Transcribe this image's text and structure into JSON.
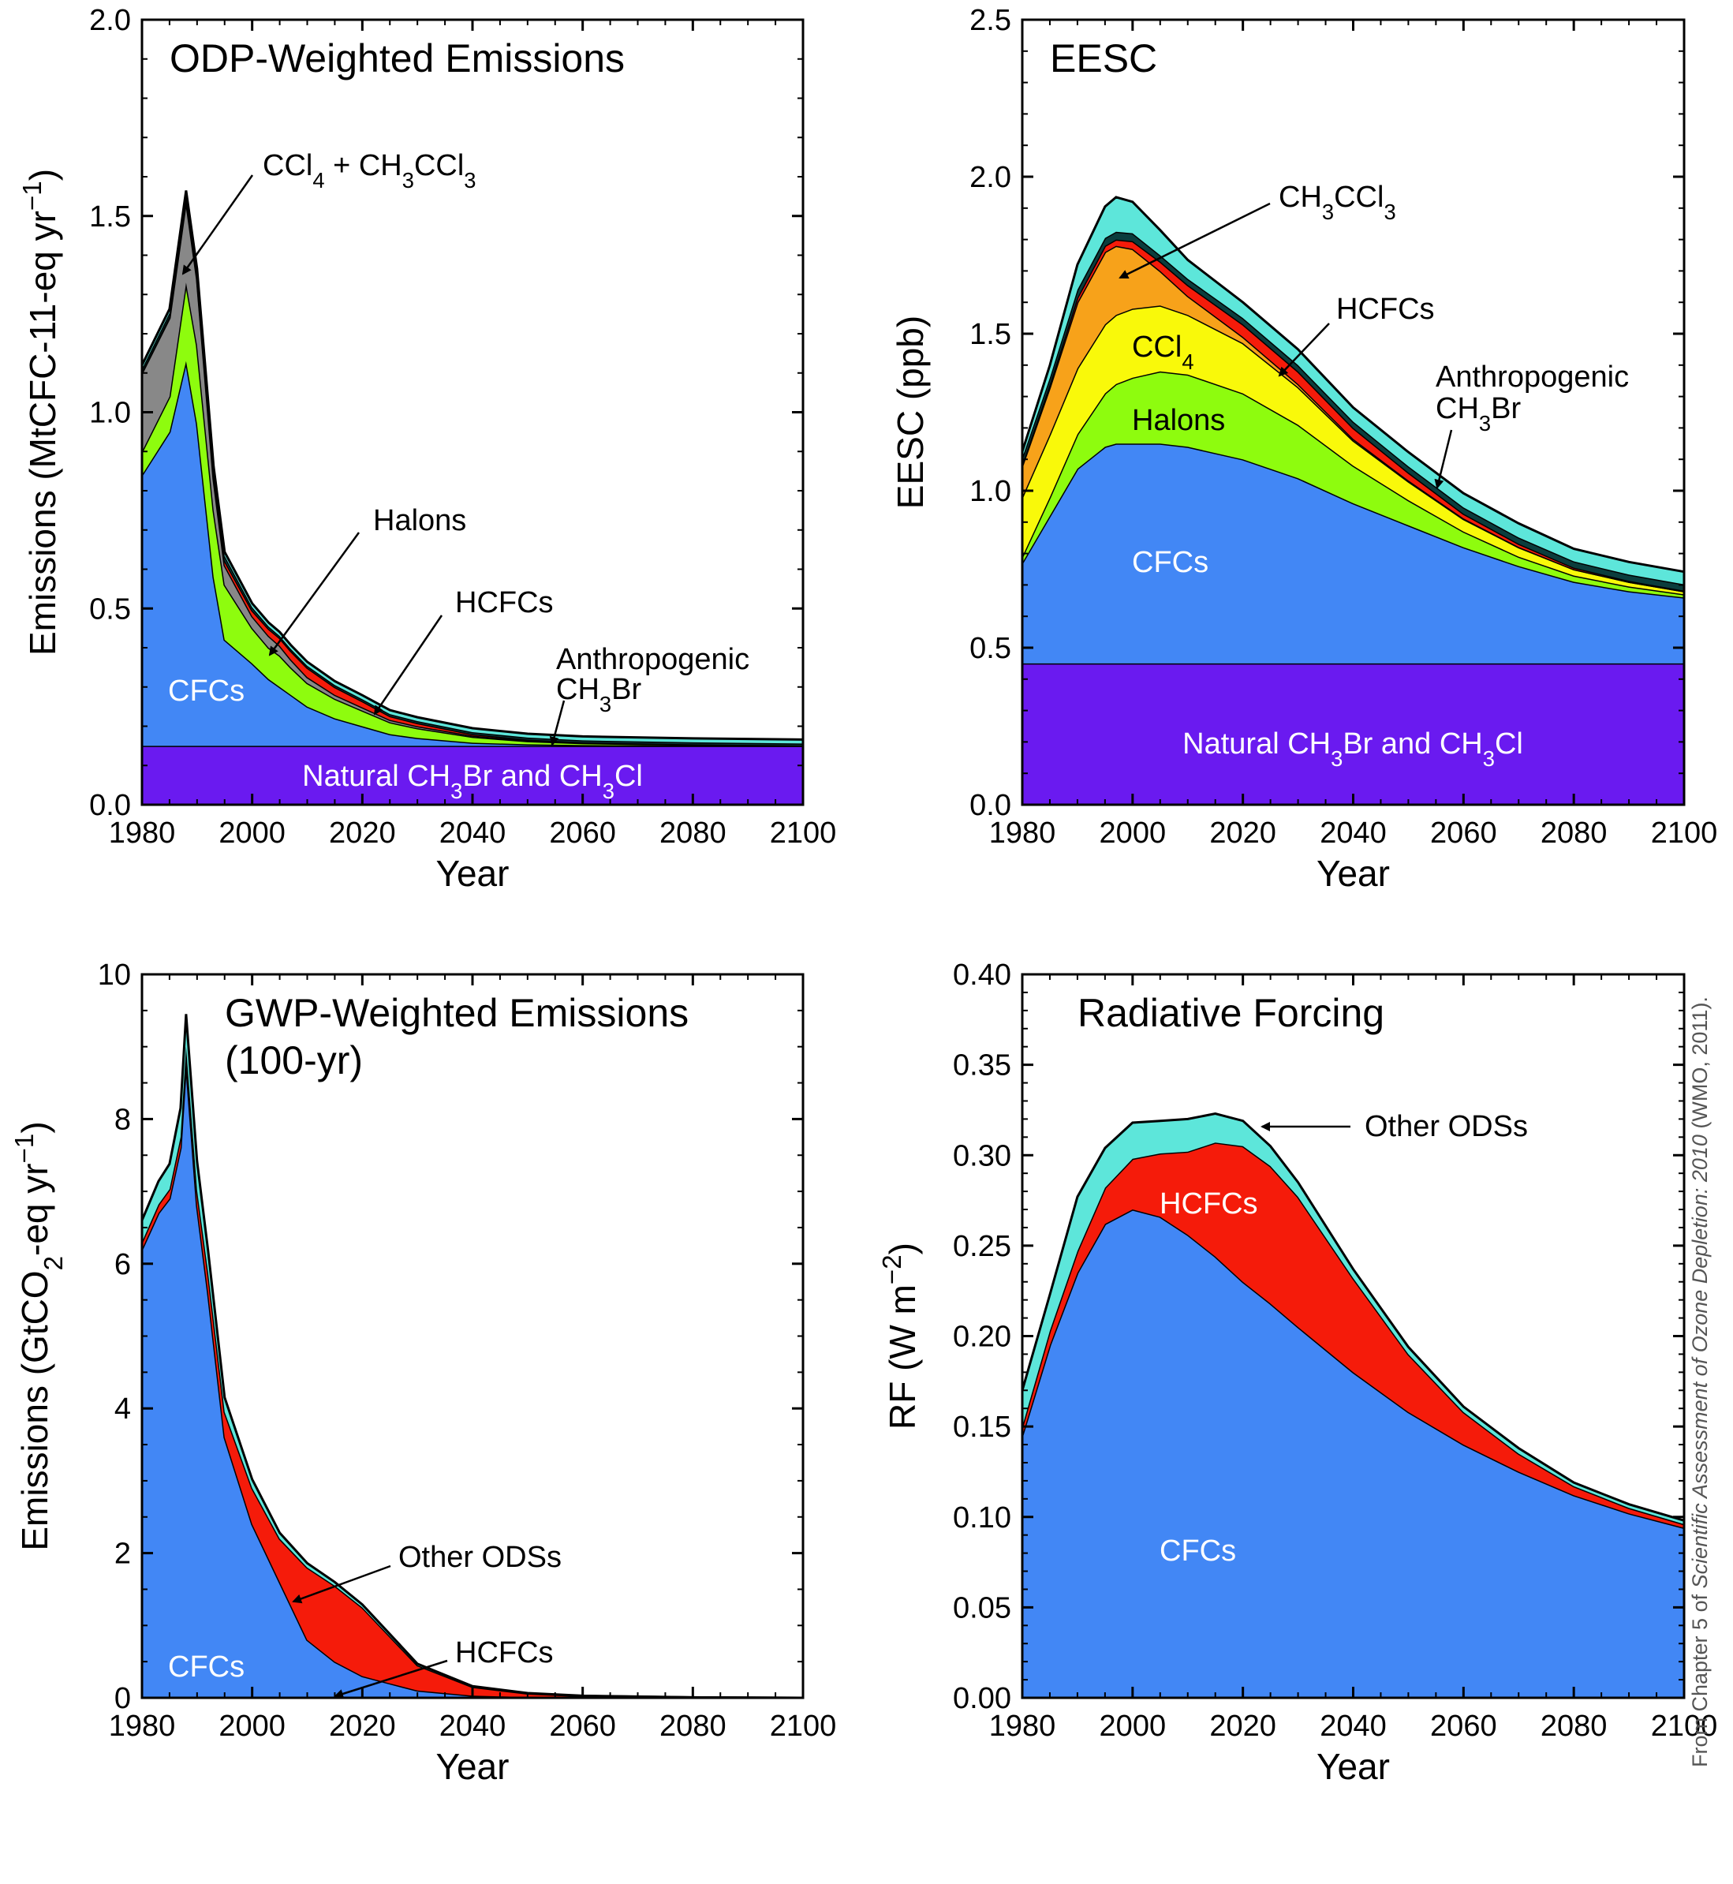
{
  "colors": {
    "CFCs": "#4287f5",
    "Halons": "#8efc0e",
    "CCl4": "#f9f90a",
    "CH3CCl3": "#f7a21a",
    "HCFCs": "#f51b0a",
    "Anthropogenic CH3Br": "#0b3d3d",
    "Other ODSs": "#5de6da",
    "Natural CH3Br and CH3Cl": "#6a1af0",
    "outline": "#000000",
    "label_on_dark": "#ffffff"
  },
  "credit": {
    "prefix": "From Chapter 5 of ",
    "title": "Scientific Assessment of Ozone Depletion: 2010",
    "suffix": " (WMO, 2011)."
  },
  "chart_data": [
    {
      "type": "area",
      "stacked": true,
      "title": "ODP-Weighted Emissions",
      "xlabel": "Year",
      "ylabel": "Emissions (MtCFC-11-eq yr⁻¹)",
      "xlim": [
        1980,
        2100
      ],
      "ylim": [
        0,
        2.0
      ],
      "xticks": [
        "1980",
        "2000",
        "2020",
        "2040",
        "2060",
        "2080",
        "2100"
      ],
      "yticks": [
        "0.0",
        "0.5",
        "1.0",
        "1.5",
        "2.0"
      ],
      "x": [
        1980,
        1985,
        1988,
        1990,
        1993,
        1995,
        2000,
        2003,
        2005,
        2007,
        2010,
        2015,
        2020,
        2025,
        2030,
        2040,
        2050,
        2060,
        2080,
        2100
      ],
      "series": [
        {
          "name": "Natural CH3Br and CH3Cl",
          "values": [
            0.15,
            0.15,
            0.15,
            0.15,
            0.15,
            0.15,
            0.15,
            0.15,
            0.15,
            0.15,
            0.15,
            0.15,
            0.15,
            0.15,
            0.15,
            0.15,
            0.15,
            0.15,
            0.15,
            0.15
          ]
        },
        {
          "name": "CFCs",
          "values": [
            0.69,
            0.8,
            0.98,
            0.82,
            0.43,
            0.27,
            0.21,
            0.17,
            0.15,
            0.13,
            0.1,
            0.07,
            0.05,
            0.03,
            0.02,
            0.008,
            0.004,
            0.002,
            0.001,
            0.0
          ]
        },
        {
          "name": "Halons",
          "values": [
            0.06,
            0.09,
            0.2,
            0.2,
            0.17,
            0.14,
            0.09,
            0.08,
            0.08,
            0.07,
            0.06,
            0.05,
            0.04,
            0.03,
            0.025,
            0.015,
            0.008,
            0.005,
            0.002,
            0.001
          ]
        },
        {
          "name": "CCl4 + CH3CCl3",
          "values": [
            0.2,
            0.2,
            0.21,
            0.17,
            0.08,
            0.05,
            0.03,
            0.03,
            0.025,
            0.02,
            0.015,
            0.01,
            0.008,
            0.006,
            0.005,
            0.003,
            0.002,
            0.001,
            0.001,
            0.0
          ]
        },
        {
          "name": "HCFCs",
          "values": [
            0.002,
            0.004,
            0.005,
            0.006,
            0.01,
            0.012,
            0.015,
            0.018,
            0.02,
            0.022,
            0.024,
            0.02,
            0.016,
            0.01,
            0.008,
            0.004,
            0.002,
            0.001,
            0.0,
            0.0
          ]
        },
        {
          "name": "Anthropogenic CH3Br",
          "values": [
            0.008,
            0.009,
            0.01,
            0.01,
            0.012,
            0.012,
            0.008,
            0.006,
            0.005,
            0.005,
            0.005,
            0.005,
            0.005,
            0.005,
            0.005,
            0.005,
            0.005,
            0.005,
            0.005,
            0.005
          ]
        },
        {
          "name": "Other ODSs",
          "values": [
            0.01,
            0.01,
            0.01,
            0.01,
            0.01,
            0.01,
            0.01,
            0.01,
            0.01,
            0.01,
            0.01,
            0.01,
            0.01,
            0.01,
            0.01,
            0.01,
            0.01,
            0.01,
            0.01,
            0.01
          ]
        }
      ],
      "labels": {
        "inner_natural": "Natural CH₃Br and CH₃Cl",
        "inner_cfcs": "CFCs",
        "ccl4_ch3ccl3": "CCl₄ + CH₃CCl₃",
        "halons": "Halons",
        "hcfcs": "HCFCs",
        "anthro_1": "Anthropogenic",
        "anthro_2": "CH₃Br"
      }
    },
    {
      "type": "area",
      "stacked": true,
      "title": "EESC",
      "xlabel": "Year",
      "ylabel": "EESC (ppb)",
      "xlim": [
        1980,
        2100
      ],
      "ylim": [
        0,
        2.5
      ],
      "xticks": [
        "1980",
        "2000",
        "2020",
        "2040",
        "2060",
        "2080",
        "2100"
      ],
      "yticks": [
        "0.0",
        "0.5",
        "1.0",
        "1.5",
        "2.0",
        "2.5"
      ],
      "x": [
        1980,
        1985,
        1990,
        1995,
        1997,
        2000,
        2005,
        2010,
        2020,
        2030,
        2040,
        2050,
        2060,
        2070,
        2080,
        2090,
        2100
      ],
      "series": [
        {
          "name": "Natural CH3Br and CH3Cl",
          "values": [
            0.45,
            0.45,
            0.45,
            0.45,
            0.45,
            0.45,
            0.45,
            0.45,
            0.45,
            0.45,
            0.45,
            0.45,
            0.45,
            0.45,
            0.45,
            0.45,
            0.45
          ]
        },
        {
          "name": "CFCs",
          "values": [
            0.32,
            0.47,
            0.62,
            0.69,
            0.7,
            0.7,
            0.7,
            0.69,
            0.65,
            0.59,
            0.51,
            0.44,
            0.37,
            0.31,
            0.26,
            0.23,
            0.21
          ]
        },
        {
          "name": "Halons",
          "values": [
            0.02,
            0.06,
            0.11,
            0.17,
            0.19,
            0.21,
            0.23,
            0.23,
            0.21,
            0.17,
            0.12,
            0.08,
            0.05,
            0.03,
            0.02,
            0.015,
            0.01
          ]
        },
        {
          "name": "CCl4",
          "values": [
            0.19,
            0.2,
            0.21,
            0.22,
            0.22,
            0.22,
            0.21,
            0.19,
            0.16,
            0.12,
            0.08,
            0.06,
            0.04,
            0.03,
            0.02,
            0.015,
            0.01
          ]
        },
        {
          "name": "CH3CCl3",
          "values": [
            0.1,
            0.15,
            0.21,
            0.23,
            0.22,
            0.19,
            0.11,
            0.06,
            0.02,
            0.01,
            0.005,
            0.003,
            0.002,
            0.001,
            0.0,
            0.0,
            0.0
          ]
        },
        {
          "name": "HCFCs",
          "values": [
            0.005,
            0.01,
            0.015,
            0.02,
            0.02,
            0.025,
            0.03,
            0.035,
            0.04,
            0.04,
            0.035,
            0.025,
            0.015,
            0.01,
            0.005,
            0.003,
            0.002
          ]
        },
        {
          "name": "Anthropogenic CH3Br",
          "values": [
            0.02,
            0.02,
            0.025,
            0.025,
            0.025,
            0.025,
            0.02,
            0.02,
            0.02,
            0.02,
            0.02,
            0.02,
            0.02,
            0.02,
            0.02,
            0.02,
            0.02
          ]
        },
        {
          "name": "Other ODSs",
          "values": [
            0.02,
            0.04,
            0.08,
            0.1,
            0.11,
            0.1,
            0.08,
            0.06,
            0.05,
            0.05,
            0.045,
            0.045,
            0.045,
            0.045,
            0.04,
            0.04,
            0.04
          ]
        }
      ],
      "labels": {
        "inner_natural": "Natural CH₃Br and CH₃Cl",
        "inner_cfcs": "CFCs",
        "inner_halons": "Halons",
        "inner_ccl4": "CCl₄",
        "ch3ccl3": "CH₃CCl₃",
        "hcfcs": "HCFCs",
        "anthro_1": "Anthropogenic",
        "anthro_2": "CH₃Br"
      }
    },
    {
      "type": "area",
      "stacked": true,
      "title": "GWP-Weighted Emissions",
      "subtitle": "(100-yr)",
      "xlabel": "Year",
      "ylabel": "Emissions (GtCO₂-eq yr⁻¹)",
      "xlim": [
        1980,
        2100
      ],
      "ylim": [
        0,
        10
      ],
      "xticks": [
        "1980",
        "2000",
        "2020",
        "2040",
        "2060",
        "2080",
        "2100"
      ],
      "yticks": [
        "0",
        "2",
        "4",
        "6",
        "8",
        "10"
      ],
      "x": [
        1980,
        1983,
        1985,
        1987,
        1988,
        1990,
        1992,
        1995,
        2000,
        2005,
        2010,
        2015,
        2020,
        2025,
        2030,
        2040,
        2050,
        2060,
        2080,
        2100
      ],
      "series": [
        {
          "name": "CFCs",
          "values": [
            6.2,
            6.7,
            6.9,
            7.6,
            8.8,
            6.8,
            5.6,
            3.6,
            2.4,
            1.6,
            0.8,
            0.5,
            0.3,
            0.2,
            0.1,
            0.03,
            0.01,
            0.005,
            0.0,
            0.0
          ]
        },
        {
          "name": "HCFCs",
          "values": [
            0.1,
            0.12,
            0.13,
            0.15,
            0.2,
            0.22,
            0.28,
            0.35,
            0.5,
            0.6,
            1.0,
            1.05,
            0.95,
            0.65,
            0.35,
            0.12,
            0.05,
            0.02,
            0.005,
            0.0
          ]
        },
        {
          "name": "Other ODSs",
          "values": [
            0.3,
            0.32,
            0.35,
            0.4,
            0.45,
            0.4,
            0.3,
            0.2,
            0.12,
            0.08,
            0.06,
            0.05,
            0.04,
            0.03,
            0.02,
            0.01,
            0.005,
            0.003,
            0.001,
            0.0
          ]
        }
      ],
      "labels": {
        "inner_cfcs": "CFCs",
        "other_odss": "Other ODSs",
        "hcfcs": "HCFCs"
      }
    },
    {
      "type": "area",
      "stacked": true,
      "title": "Radiative Forcing",
      "xlabel": "Year",
      "ylabel": "RF (W m⁻²)",
      "xlim": [
        1980,
        2100
      ],
      "ylim": [
        0,
        0.4
      ],
      "xticks": [
        "1980",
        "2000",
        "2020",
        "2040",
        "2060",
        "2080",
        "2100"
      ],
      "yticks": [
        "0.00",
        "0.05",
        "0.10",
        "0.15",
        "0.20",
        "0.25",
        "0.30",
        "0.35",
        "0.40"
      ],
      "x": [
        1980,
        1985,
        1990,
        1995,
        2000,
        2005,
        2010,
        2015,
        2020,
        2025,
        2030,
        2040,
        2050,
        2060,
        2070,
        2080,
        2090,
        2100
      ],
      "series": [
        {
          "name": "CFCs",
          "values": [
            0.145,
            0.195,
            0.235,
            0.262,
            0.27,
            0.266,
            0.256,
            0.244,
            0.23,
            0.218,
            0.205,
            0.18,
            0.158,
            0.14,
            0.125,
            0.112,
            0.102,
            0.094
          ]
        },
        {
          "name": "HCFCs",
          "values": [
            0.005,
            0.008,
            0.012,
            0.02,
            0.028,
            0.035,
            0.046,
            0.063,
            0.075,
            0.076,
            0.072,
            0.052,
            0.032,
            0.018,
            0.01,
            0.005,
            0.003,
            0.002
          ]
        },
        {
          "name": "Other ODSs",
          "values": [
            0.02,
            0.02,
            0.03,
            0.022,
            0.02,
            0.018,
            0.018,
            0.016,
            0.014,
            0.011,
            0.008,
            0.005,
            0.004,
            0.003,
            0.003,
            0.002,
            0.002,
            0.002
          ]
        }
      ],
      "labels": {
        "inner_cfcs": "CFCs",
        "inner_hcfcs": "HCFCs",
        "other_odss": "Other ODSs"
      }
    }
  ]
}
